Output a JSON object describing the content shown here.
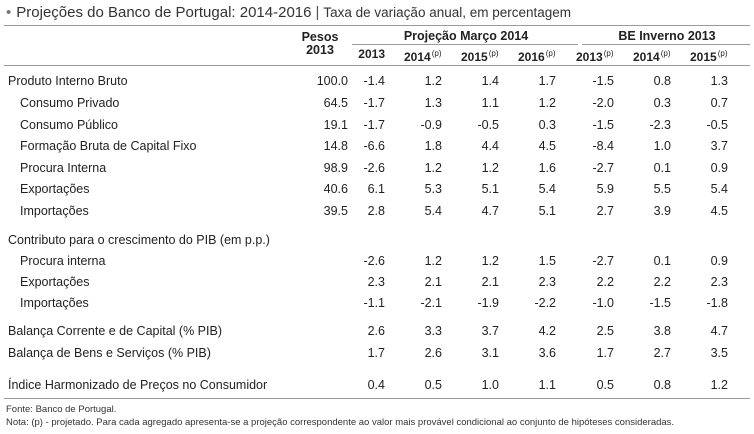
{
  "title": {
    "bullet": "•",
    "main": "Projeções do Banco de Portugal: 2014-2016",
    "separator": "|",
    "subtitle": "Taxa de variação anual, em percentagem"
  },
  "header": {
    "weights_label_1": "Pesos",
    "weights_label_2": "2013",
    "group_projection": "Projeção Março 2014",
    "group_winter": "BE Inverno 2013",
    "years": [
      {
        "label": "2013",
        "sup": ""
      },
      {
        "label": "2014",
        "sup": "(p)"
      },
      {
        "label": "2015",
        "sup": "(p)"
      },
      {
        "label": "2016",
        "sup": "(p)"
      },
      {
        "label": "2013",
        "sup": "(p)"
      },
      {
        "label": "2014",
        "sup": "(p)"
      },
      {
        "label": "2015",
        "sup": "(p)"
      }
    ]
  },
  "rows": [
    {
      "label": "Produto Interno Bruto",
      "indent": 0,
      "weight": "100.0",
      "values": [
        "-1.4",
        "1.2",
        "1.4",
        "1.7",
        "-1.5",
        "0.8",
        "1.3"
      ]
    },
    {
      "label": "Consumo Privado",
      "indent": 1,
      "weight": "64.5",
      "values": [
        "-1.7",
        "1.3",
        "1.1",
        "1.2",
        "-2.0",
        "0.3",
        "0.7"
      ]
    },
    {
      "label": "Consumo Público",
      "indent": 1,
      "weight": "19.1",
      "values": [
        "-1.7",
        "-0.9",
        "-0.5",
        "0.3",
        "-1.5",
        "-2.3",
        "-0.5"
      ]
    },
    {
      "label": "Formação Bruta de Capital Fixo",
      "indent": 1,
      "weight": "14.8",
      "values": [
        "-6.6",
        "1.8",
        "4.4",
        "4.5",
        "-8.4",
        "1.0",
        "3.7"
      ]
    },
    {
      "label": "Procura Interna",
      "indent": 1,
      "weight": "98.9",
      "values": [
        "-2.6",
        "1.2",
        "1.2",
        "1.6",
        "-2.7",
        "0.1",
        "0.9"
      ]
    },
    {
      "label": "Exportações",
      "indent": 1,
      "weight": "40.6",
      "values": [
        "6.1",
        "5.3",
        "5.1",
        "5.4",
        "5.9",
        "5.5",
        "5.4"
      ]
    },
    {
      "label": "Importações",
      "indent": 1,
      "weight": "39.5",
      "values": [
        "2.8",
        "5.4",
        "4.7",
        "5.1",
        "2.7",
        "3.9",
        "4.5"
      ]
    },
    {
      "label": "Contributo para o crescimento do PIB (em p.p.)",
      "indent": 0,
      "weight": "",
      "values": [
        "",
        "",
        "",
        "",
        "",
        "",
        ""
      ]
    },
    {
      "label": "Procura interna",
      "indent": 1,
      "weight": "",
      "values": [
        "-2.6",
        "1.2",
        "1.2",
        "1.5",
        "-2.7",
        "0.1",
        "0.9"
      ]
    },
    {
      "label": "Exportações",
      "indent": 1,
      "weight": "",
      "values": [
        "2.3",
        "2.1",
        "2.1",
        "2.3",
        "2.2",
        "2.2",
        "2.3"
      ]
    },
    {
      "label": "Importações",
      "indent": 1,
      "weight": "",
      "values": [
        "-1.1",
        "-2.1",
        "-1.9",
        "-2.2",
        "-1.0",
        "-1.5",
        "-1.8"
      ]
    },
    {
      "label": "Balança Corrente e de Capital (% PIB)",
      "indent": 0,
      "weight": "",
      "values": [
        "2.6",
        "3.3",
        "3.7",
        "4.2",
        "2.5",
        "3.8",
        "4.7"
      ]
    },
    {
      "label": "Balança de Bens e Serviços (% PIB)",
      "indent": 0,
      "weight": "",
      "values": [
        "1.7",
        "2.6",
        "3.1",
        "3.6",
        "1.7",
        "2.7",
        "3.5"
      ]
    },
    {
      "label": "Índice  Harmonizado de Preços no Consumidor",
      "indent": 0,
      "weight": "",
      "values": [
        "0.4",
        "0.5",
        "1.0",
        "1.1",
        "0.5",
        "0.8",
        "1.2"
      ]
    }
  ],
  "footer": {
    "source": "Fonte: Banco de Portugal.",
    "note": "Nota: (p) - projetado. Para cada agregado apresenta-se a projeção correspondente ao valor mais provável condicional ao conjunto de hipóteses consideradas."
  }
}
